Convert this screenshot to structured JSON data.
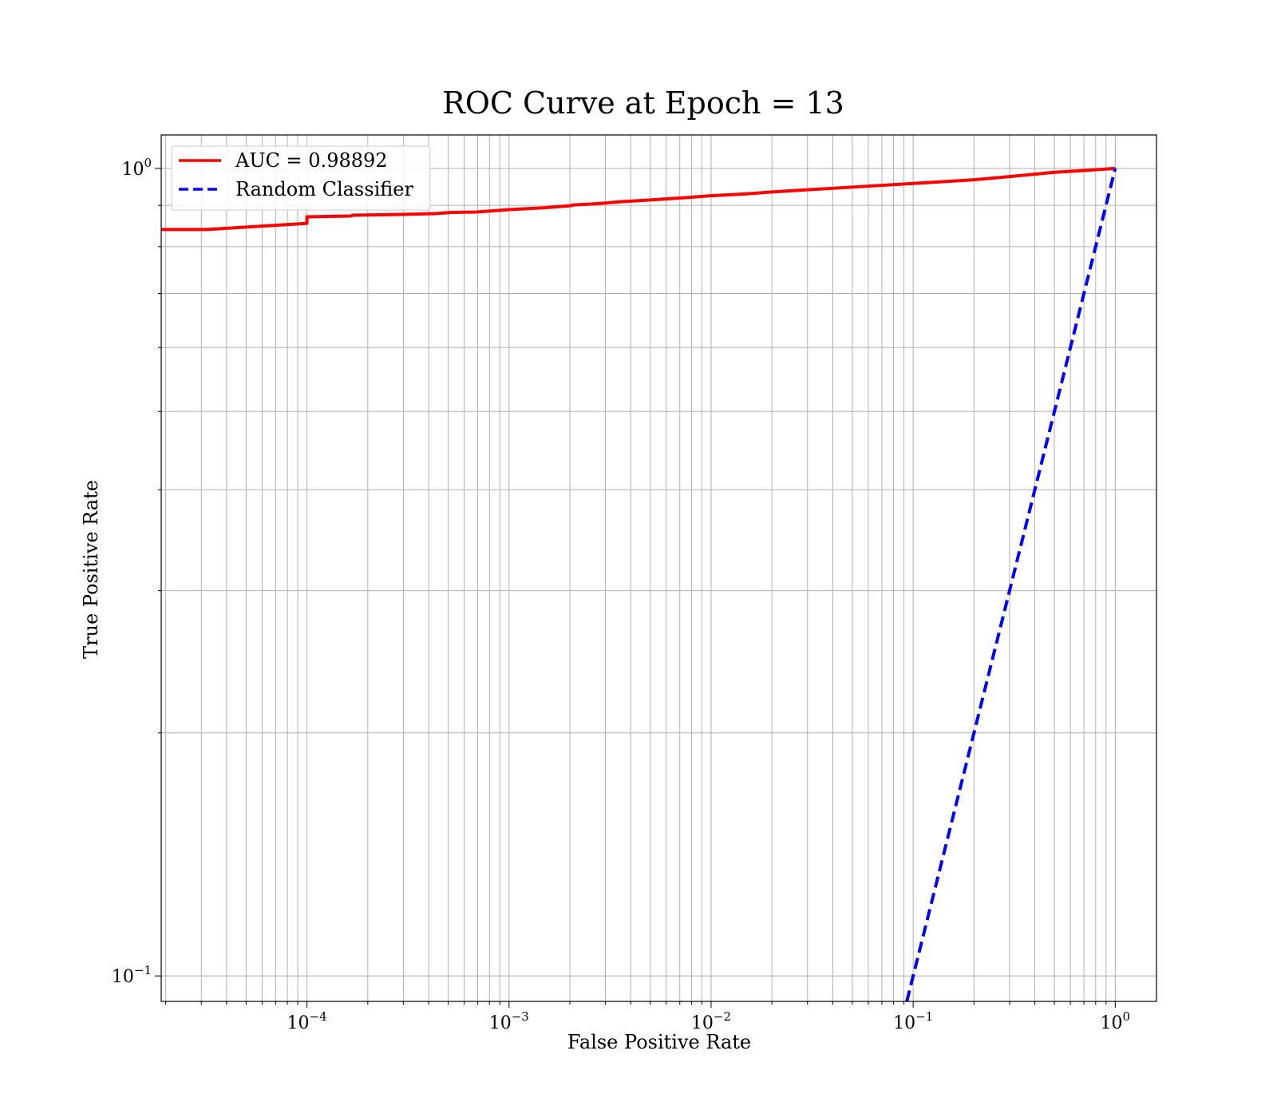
{
  "chart_data": {
    "type": "line",
    "title": "ROC Curve at Epoch = 13",
    "xlabel": "False Positive Rate",
    "ylabel": "True Positive Rate",
    "xscale": "log",
    "yscale": "log",
    "xlim": [
      1.9e-05,
      1.6
    ],
    "ylim": [
      0.093,
      1.1
    ],
    "grid": true,
    "grid_minor": true,
    "legend_position": "top-left",
    "x_ticks": [
      {
        "value": 0.0001,
        "base": "10",
        "exp": "−4"
      },
      {
        "value": 0.001,
        "base": "10",
        "exp": "−3"
      },
      {
        "value": 0.01,
        "base": "10",
        "exp": "−2"
      },
      {
        "value": 0.1,
        "base": "10",
        "exp": "−1"
      },
      {
        "value": 1,
        "base": "10",
        "exp": "0"
      }
    ],
    "y_ticks": [
      {
        "value": 1,
        "base": "10",
        "exp": "0"
      },
      {
        "value": 0.1,
        "base": "10",
        "exp": "−1"
      }
    ],
    "series": [
      {
        "name": "AUC = 0.98892",
        "color": "#ff0000",
        "style": "solid",
        "x": [
          1.9e-05,
          3.2e-05,
          0.0001,
          0.0001,
          0.000165,
          0.000168,
          0.0003,
          0.00043,
          0.00052,
          0.00069,
          0.001,
          0.0015,
          0.002,
          0.0021,
          0.0027,
          0.0035,
          0.005,
          0.0075,
          0.01,
          0.015,
          0.02,
          0.03,
          0.05,
          0.1,
          0.2,
          0.3,
          0.5,
          0.7,
          1.0
        ],
        "y": [
          0.84,
          0.84,
          0.855,
          0.871,
          0.873,
          0.875,
          0.877,
          0.879,
          0.882,
          0.883,
          0.889,
          0.894,
          0.899,
          0.901,
          0.904,
          0.909,
          0.914,
          0.92,
          0.925,
          0.93,
          0.935,
          0.941,
          0.948,
          0.958,
          0.968,
          0.977,
          0.989,
          0.994,
          1.0
        ]
      },
      {
        "name": "Random Classifier",
        "color": "#0000ff",
        "style": "dashed",
        "x": [
          0.093,
          1.0
        ],
        "y": [
          0.093,
          1.0
        ]
      }
    ]
  }
}
